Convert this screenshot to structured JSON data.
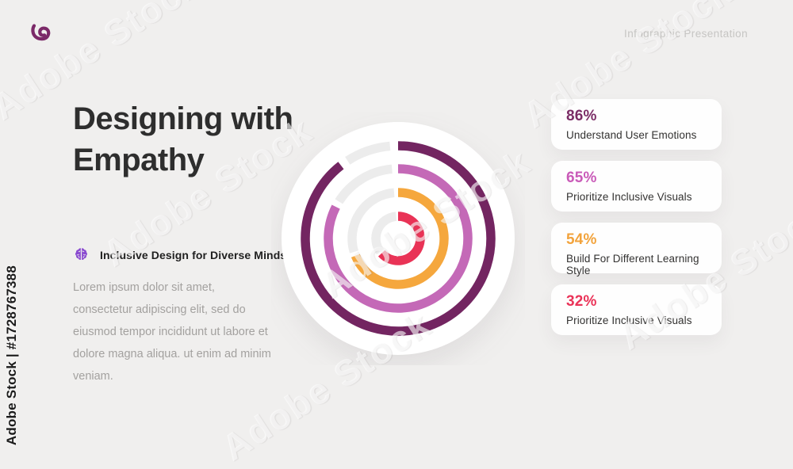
{
  "page": {
    "background": "#f0efee"
  },
  "header": {
    "brand_logo_color": "#7b2968",
    "right_label": "Infographic Presentation"
  },
  "left_panel": {
    "title_line1": "Designing with",
    "title_line2": "Empathy",
    "subtitle": "Inclusive Design for Diverse Minds",
    "subtitle_icon": "brain-icon",
    "subtitle_icon_color": "#8a4bd0",
    "body_text": "Lorem ipsum dolor sit amet, consectetur adipiscing elit, sed do eiusmod tempor incididunt ut labore et dolore magna aliqua. ut enim ad minim veniam."
  },
  "stat_cards": [
    {
      "percent": "86%",
      "label": "Understand User Emotions",
      "color": "#7b2d66"
    },
    {
      "percent": "65%",
      "label": "Prioritize Inclusive Visuals",
      "color": "#c95ab8"
    },
    {
      "percent": "54%",
      "label": "Build For Different Learning Style",
      "color": "#f2a33c"
    },
    {
      "percent": "32%",
      "label": "Prioritize Inclusive Visuals",
      "color": "#ea3358"
    }
  ],
  "chart_data": {
    "type": "radial_progress",
    "title": "Designing with Empathy — concentric ring chart",
    "categories": [
      "Understand User Emotions",
      "Prioritize Inclusive Visuals",
      "Build For Different Learning Style",
      "Prioritize Inclusive Visuals"
    ],
    "values": [
      86,
      65,
      54,
      32
    ],
    "legend_position": "right-cards",
    "start_angle_deg": 0,
    "gap_deg": 5,
    "ring_thickness": 11.5,
    "track_color": "#ececec",
    "background_circle": {
      "color": "#ffffff",
      "radius": 147
    },
    "rings": [
      {
        "percent": 86,
        "color": "#732561",
        "radius": 117,
        "sweep_deg": 322
      },
      {
        "percent": 65,
        "color": "#c469b7",
        "radius": 88,
        "sweep_deg": 297
      },
      {
        "percent": 54,
        "color": "#f5a73d",
        "radius": 58,
        "sweep_deg": 248
      },
      {
        "percent": 32,
        "color": "#e93356",
        "radius": 28,
        "sweep_deg": 228
      }
    ]
  },
  "watermark": {
    "side_text": "Adobe Stock | #1728767388",
    "diagonal_text": "Adobe Stock"
  }
}
